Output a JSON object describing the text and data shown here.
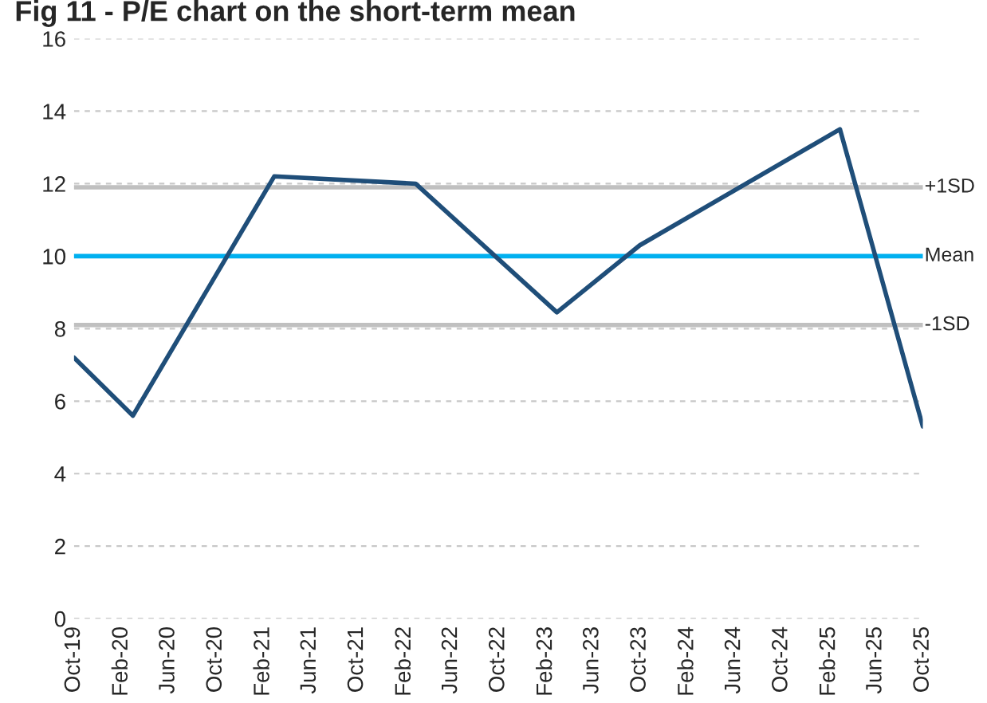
{
  "chart_data": {
    "type": "line",
    "title": "Fig 11 - P/E chart on the short-term mean",
    "x": [
      "2019-10",
      "2020-03",
      "2021-03",
      "2022-03",
      "2023-03",
      "2023-10",
      "2025-03",
      "2025-10"
    ],
    "series": [
      {
        "color": "#1f4e79",
        "values": [
          7.2,
          5.6,
          12.2,
          12.0,
          8.45,
          10.3,
          13.5,
          5.3
        ]
      }
    ],
    "xlim": [
      "2019-10",
      "2025-10"
    ],
    "xticks": [
      {
        "value": "2019-10",
        "label": "Oct-19"
      },
      {
        "value": "2020-02",
        "label": "Feb-20"
      },
      {
        "value": "2020-06",
        "label": "Jun-20"
      },
      {
        "value": "2020-10",
        "label": "Oct-20"
      },
      {
        "value": "2021-02",
        "label": "Feb-21"
      },
      {
        "value": "2021-06",
        "label": "Jun-21"
      },
      {
        "value": "2021-10",
        "label": "Oct-21"
      },
      {
        "value": "2022-02",
        "label": "Feb-22"
      },
      {
        "value": "2022-06",
        "label": "Jun-22"
      },
      {
        "value": "2022-10",
        "label": "Oct-22"
      },
      {
        "value": "2023-02",
        "label": "Feb-23"
      },
      {
        "value": "2023-06",
        "label": "Jun-23"
      },
      {
        "value": "2023-10",
        "label": "Oct-23"
      },
      {
        "value": "2024-02",
        "label": "Feb-24"
      },
      {
        "value": "2024-06",
        "label": "Jun-24"
      },
      {
        "value": "2024-10",
        "label": "Oct-24"
      },
      {
        "value": "2025-02",
        "label": "Feb-25"
      },
      {
        "value": "2025-06",
        "label": "Jun-25"
      },
      {
        "value": "2025-10",
        "label": "Oct-25"
      }
    ],
    "ylim": [
      0,
      16
    ],
    "yticks": [
      0,
      2,
      4,
      6,
      8,
      10,
      12,
      14,
      16
    ],
    "ref_lines": [
      {
        "axis": "y",
        "value": 11.9,
        "label": "+1SD",
        "color": "#c0c0c0"
      },
      {
        "axis": "y",
        "value": 10,
        "label": "Mean",
        "color": "#00b0f0"
      },
      {
        "axis": "y",
        "value": 8.1,
        "label": "-1SD",
        "color": "#c0c0c0"
      }
    ],
    "grid": "y",
    "legend": false,
    "marker": "none",
    "line_style": "solid"
  }
}
